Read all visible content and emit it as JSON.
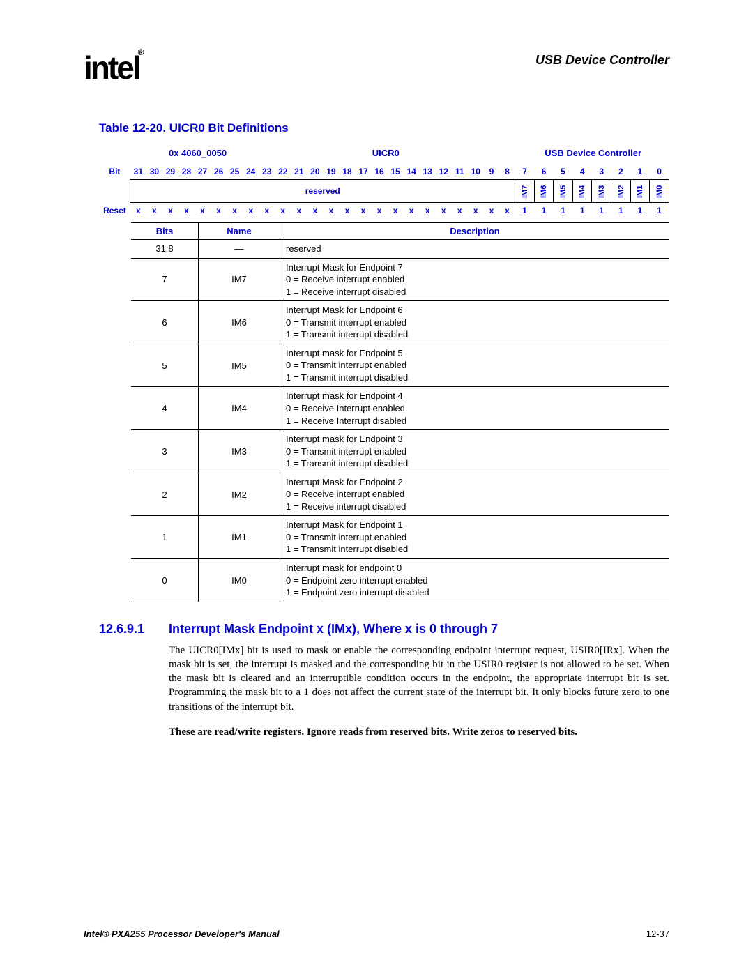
{
  "colors": {
    "accent": "#0000cc",
    "text": "#000000",
    "background": "#ffffff",
    "border": "#000000"
  },
  "header": {
    "logo_text": "intel",
    "logo_reg": "®",
    "doc_section": "USB Device Controller"
  },
  "table_caption": "Table 12-20. UICR0 Bit Definitions",
  "register_header": {
    "address": "0x 4060_0050",
    "name": "UICR0",
    "module": "USB Device Controller"
  },
  "bit_row_label": "Bit",
  "reset_row_label": "Reset",
  "bit_numbers": [
    "31",
    "30",
    "29",
    "28",
    "27",
    "26",
    "25",
    "24",
    "23",
    "22",
    "21",
    "20",
    "19",
    "18",
    "17",
    "16",
    "15",
    "14",
    "13",
    "12",
    "11",
    "10",
    "9",
    "8",
    "7",
    "6",
    "5",
    "4",
    "3",
    "2",
    "1",
    "0"
  ],
  "reserved_label": "reserved",
  "im_labels": [
    "IM7",
    "IM6",
    "IM5",
    "IM4",
    "IM3",
    "IM2",
    "IM1",
    "IM0"
  ],
  "reset_values": [
    "x",
    "x",
    "x",
    "x",
    "x",
    "x",
    "x",
    "x",
    "x",
    "x",
    "x",
    "x",
    "x",
    "x",
    "x",
    "x",
    "x",
    "x",
    "x",
    "x",
    "x",
    "x",
    "x",
    "x",
    "1",
    "1",
    "1",
    "1",
    "1",
    "1",
    "1",
    "1"
  ],
  "desc_headers": {
    "bits": "Bits",
    "name": "Name",
    "desc": "Description"
  },
  "desc_rows": [
    {
      "bits": "31:8",
      "name": "—",
      "lines": [
        "reserved"
      ]
    },
    {
      "bits": "7",
      "name": "IM7",
      "lines": [
        "Interrupt Mask for Endpoint 7",
        "0 =  Receive interrupt enabled",
        "1 =  Receive interrupt disabled"
      ]
    },
    {
      "bits": "6",
      "name": "IM6",
      "lines": [
        "Interrupt Mask for Endpoint 6",
        "0 =  Transmit interrupt enabled",
        "1 =  Transmit interrupt disabled"
      ]
    },
    {
      "bits": "5",
      "name": "IM5",
      "lines": [
        "Interrupt mask for Endpoint 5",
        "0 =  Transmit interrupt enabled",
        "1 =  Transmit interrupt disabled"
      ]
    },
    {
      "bits": "4",
      "name": "IM4",
      "lines": [
        "Interrupt mask for Endpoint 4",
        "0 =  Receive Interrupt enabled",
        "1 =  Receive Interrupt disabled"
      ]
    },
    {
      "bits": "3",
      "name": "IM3",
      "lines": [
        "Interrupt mask for Endpoint 3",
        "0 =  Transmit interrupt enabled",
        "1 =  Transmit interrupt disabled"
      ]
    },
    {
      "bits": "2",
      "name": "IM2",
      "lines": [
        "Interrupt Mask for Endpoint 2",
        "0 =  Receive interrupt enabled",
        "1 =  Receive interrupt disabled"
      ]
    },
    {
      "bits": "1",
      "name": "IM1",
      "lines": [
        "Interrupt Mask for Endpoint 1",
        "0 =  Transmit interrupt enabled",
        "1 =  Transmit interrupt disabled"
      ]
    },
    {
      "bits": "0",
      "name": "IM0",
      "lines": [
        "Interrupt mask for endpoint 0",
        "0 =  Endpoint zero interrupt enabled",
        "1 =  Endpoint zero interrupt disabled"
      ]
    }
  ],
  "section": {
    "number": "12.6.9.1",
    "title": "Interrupt Mask Endpoint x (IMx), Where x is 0 through 7",
    "body": "The UICR0[IMx] bit is used to mask or enable the corresponding endpoint interrupt request, USIR0[IRx]. When the mask bit is set, the interrupt is masked and the corresponding bit in the USIR0 register is not allowed to be set. When the mask bit is cleared and an interruptible condition occurs in the endpoint, the appropriate interrupt bit is set. Programming the mask bit to a 1 does not affect the current state of the interrupt bit. It only blocks future zero to one transitions of the interrupt bit.",
    "bold_note": "These are read/write registers. Ignore reads from reserved bits. Write zeros to reserved bits."
  },
  "footer": {
    "left": "Intel® PXA255 Processor Developer's Manual",
    "right": "12-37"
  }
}
